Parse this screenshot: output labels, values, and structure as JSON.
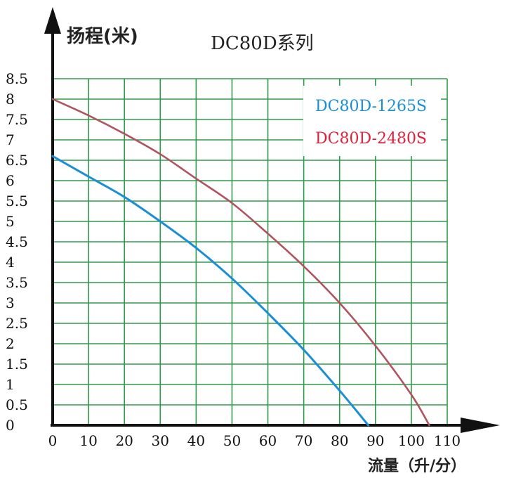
{
  "chart_data": {
    "type": "line",
    "title": "DC80D系列",
    "ylabel": "扬程(米)",
    "xlabel": "流量（升/分）",
    "xlim": [
      0,
      110
    ],
    "ylim": [
      0,
      8.5
    ],
    "x_ticks": [
      0,
      10,
      20,
      30,
      40,
      50,
      60,
      70,
      80,
      90,
      100,
      110
    ],
    "y_ticks": [
      0,
      0.5,
      1,
      1.5,
      2,
      2.5,
      3,
      3.5,
      4,
      4.5,
      5,
      5.5,
      6,
      6.5,
      7,
      7.5,
      8,
      8.5
    ],
    "grid": true,
    "legend_position": "top-right",
    "series": [
      {
        "name": "DC80D-1265S",
        "color": "#1a8fd6",
        "points": [
          [
            0,
            6.6
          ],
          [
            10,
            6.1
          ],
          [
            20,
            5.6
          ],
          [
            30,
            5.0
          ],
          [
            40,
            4.35
          ],
          [
            50,
            3.6
          ],
          [
            60,
            2.75
          ],
          [
            70,
            1.85
          ],
          [
            80,
            0.85
          ],
          [
            88,
            0
          ]
        ]
      },
      {
        "name": "DC80D-2480S",
        "color": "#b05560",
        "legend_color": "#e0203a",
        "points": [
          [
            0,
            8.0
          ],
          [
            10,
            7.6
          ],
          [
            20,
            7.15
          ],
          [
            30,
            6.65
          ],
          [
            40,
            6.05
          ],
          [
            50,
            5.45
          ],
          [
            60,
            4.7
          ],
          [
            70,
            3.9
          ],
          [
            80,
            3.0
          ],
          [
            90,
            1.95
          ],
          [
            100,
            0.75
          ],
          [
            105,
            0
          ]
        ]
      }
    ]
  },
  "colors": {
    "grid": "#2e9b4a",
    "axis": "#111111"
  }
}
